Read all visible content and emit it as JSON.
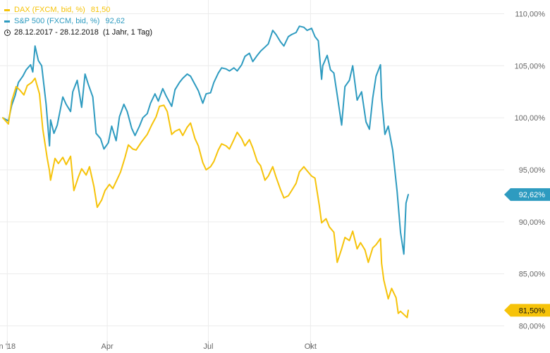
{
  "legend": {
    "series": [
      {
        "name": "DAX (FXCM, bid, %)",
        "value": "81,50",
        "color": "#f6c30a"
      },
      {
        "name": "S&P 500 (FXCM, bid, %)",
        "value": "92,62",
        "color": "#2e9bc0"
      }
    ],
    "range": "28.12.2017 - 28.12.2018",
    "interval": "(1 Jahr, 1 Tag)"
  },
  "colors": {
    "grid": "#ececec",
    "axis_text": "#666666"
  },
  "chart_data": {
    "type": "line",
    "x_range": [
      "2017-12-28",
      "2018-12-28"
    ],
    "ylim": [
      79.5,
      111.5
    ],
    "y_ticks": [
      {
        "value": 80,
        "label": "80,00%"
      },
      {
        "value": 85,
        "label": "85,00%"
      },
      {
        "value": 90,
        "label": "90,00%"
      },
      {
        "value": 95,
        "label": "95,00%"
      },
      {
        "value": 100,
        "label": "100,00%"
      },
      {
        "value": 105,
        "label": "105,00%"
      },
      {
        "value": 110,
        "label": "110,00%"
      }
    ],
    "x_ticks": [
      {
        "date": "2018-01-01",
        "label": "n '18"
      },
      {
        "date": "2018-04-01",
        "label": "Apr"
      },
      {
        "date": "2018-07-01",
        "label": "Jul"
      },
      {
        "date": "2018-10-01",
        "label": "Okt"
      }
    ],
    "series": [
      {
        "name": "S&P 500 (FXCM, bid, %)",
        "color": "#2e9bc0",
        "last_label": "92,62%",
        "points": [
          [
            "2017-12-28",
            100.0
          ],
          [
            "2018-01-02",
            99.7
          ],
          [
            "2018-01-05",
            101.2
          ],
          [
            "2018-01-08",
            102.1
          ],
          [
            "2018-01-11",
            103.4
          ],
          [
            "2018-01-15",
            104.0
          ],
          [
            "2018-01-18",
            104.6
          ],
          [
            "2018-01-22",
            105.1
          ],
          [
            "2018-01-24",
            104.4
          ],
          [
            "2018-01-26",
            106.9
          ],
          [
            "2018-01-29",
            105.5
          ],
          [
            "2018-02-01",
            105.0
          ],
          [
            "2018-02-05",
            101.3
          ],
          [
            "2018-02-08",
            97.3
          ],
          [
            "2018-02-09",
            99.8
          ],
          [
            "2018-02-12",
            98.5
          ],
          [
            "2018-02-15",
            99.3
          ],
          [
            "2018-02-20",
            102.0
          ],
          [
            "2018-02-23",
            101.3
          ],
          [
            "2018-02-27",
            100.6
          ],
          [
            "2018-03-01",
            102.5
          ],
          [
            "2018-03-05",
            103.6
          ],
          [
            "2018-03-09",
            101.0
          ],
          [
            "2018-03-12",
            104.2
          ],
          [
            "2018-03-15",
            103.2
          ],
          [
            "2018-03-19",
            102.0
          ],
          [
            "2018-03-22",
            98.5
          ],
          [
            "2018-03-26",
            98.0
          ],
          [
            "2018-03-29",
            97.0
          ],
          [
            "2018-04-02",
            97.6
          ],
          [
            "2018-04-05",
            99.2
          ],
          [
            "2018-04-09",
            97.8
          ],
          [
            "2018-04-12",
            100.1
          ],
          [
            "2018-04-16",
            101.3
          ],
          [
            "2018-04-19",
            100.6
          ],
          [
            "2018-04-23",
            99.0
          ],
          [
            "2018-04-26",
            98.3
          ],
          [
            "2018-04-30",
            99.2
          ],
          [
            "2018-05-03",
            100.0
          ],
          [
            "2018-05-07",
            100.4
          ],
          [
            "2018-05-10",
            101.4
          ],
          [
            "2018-05-14",
            102.3
          ],
          [
            "2018-05-17",
            101.6
          ],
          [
            "2018-05-21",
            102.8
          ],
          [
            "2018-05-24",
            102.1
          ],
          [
            "2018-05-29",
            101.1
          ],
          [
            "2018-06-01",
            102.7
          ],
          [
            "2018-06-05",
            103.4
          ],
          [
            "2018-06-08",
            103.8
          ],
          [
            "2018-06-12",
            104.2
          ],
          [
            "2018-06-15",
            104.0
          ],
          [
            "2018-06-19",
            103.2
          ],
          [
            "2018-06-22",
            102.6
          ],
          [
            "2018-06-26",
            101.4
          ],
          [
            "2018-06-29",
            102.3
          ],
          [
            "2018-07-03",
            102.4
          ],
          [
            "2018-07-06",
            103.4
          ],
          [
            "2018-07-10",
            104.3
          ],
          [
            "2018-07-13",
            104.8
          ],
          [
            "2018-07-17",
            104.7
          ],
          [
            "2018-07-20",
            104.5
          ],
          [
            "2018-07-24",
            104.8
          ],
          [
            "2018-07-27",
            104.5
          ],
          [
            "2018-07-31",
            105.1
          ],
          [
            "2018-08-03",
            105.9
          ],
          [
            "2018-08-07",
            106.2
          ],
          [
            "2018-08-10",
            105.4
          ],
          [
            "2018-08-14",
            106.0
          ],
          [
            "2018-08-17",
            106.4
          ],
          [
            "2018-08-21",
            106.8
          ],
          [
            "2018-08-24",
            107.1
          ],
          [
            "2018-08-28",
            108.4
          ],
          [
            "2018-08-31",
            108.0
          ],
          [
            "2018-09-04",
            107.3
          ],
          [
            "2018-09-07",
            106.9
          ],
          [
            "2018-09-11",
            107.8
          ],
          [
            "2018-09-14",
            108.0
          ],
          [
            "2018-09-18",
            108.2
          ],
          [
            "2018-09-21",
            108.8
          ],
          [
            "2018-09-25",
            108.7
          ],
          [
            "2018-09-28",
            108.4
          ],
          [
            "2018-10-02",
            108.6
          ],
          [
            "2018-10-05",
            107.8
          ],
          [
            "2018-10-08",
            107.4
          ],
          [
            "2018-10-11",
            103.7
          ],
          [
            "2018-10-12",
            105.0
          ],
          [
            "2018-10-16",
            106.0
          ],
          [
            "2018-10-19",
            104.6
          ],
          [
            "2018-10-22",
            104.3
          ],
          [
            "2018-10-25",
            102.2
          ],
          [
            "2018-10-29",
            99.3
          ],
          [
            "2018-11-01",
            103.0
          ],
          [
            "2018-11-05",
            103.6
          ],
          [
            "2018-11-08",
            105.0
          ],
          [
            "2018-11-12",
            101.7
          ],
          [
            "2018-11-16",
            102.5
          ],
          [
            "2018-11-20",
            99.6
          ],
          [
            "2018-11-23",
            98.9
          ],
          [
            "2018-11-26",
            101.9
          ],
          [
            "2018-11-29",
            104.0
          ],
          [
            "2018-12-03",
            105.1
          ],
          [
            "2018-12-04",
            101.9
          ],
          [
            "2018-12-07",
            98.4
          ],
          [
            "2018-12-10",
            99.2
          ],
          [
            "2018-12-14",
            96.9
          ],
          [
            "2018-12-18",
            92.9
          ],
          [
            "2018-12-21",
            89.0
          ],
          [
            "2018-12-24",
            86.9
          ],
          [
            "2018-12-26",
            91.8
          ],
          [
            "2018-12-28",
            92.62
          ]
        ]
      },
      {
        "name": "DAX (FXCM, bid, %)",
        "color": "#f6c30a",
        "last_label": "81,50%",
        "points": [
          [
            "2017-12-28",
            100.0
          ],
          [
            "2018-01-02",
            99.4
          ],
          [
            "2018-01-05",
            101.6
          ],
          [
            "2018-01-09",
            103.0
          ],
          [
            "2018-01-12",
            102.7
          ],
          [
            "2018-01-16",
            102.2
          ],
          [
            "2018-01-19",
            103.1
          ],
          [
            "2018-01-23",
            103.4
          ],
          [
            "2018-01-26",
            103.8
          ],
          [
            "2018-01-30",
            102.3
          ],
          [
            "2018-02-02",
            98.9
          ],
          [
            "2018-02-06",
            96.1
          ],
          [
            "2018-02-08",
            94.9
          ],
          [
            "2018-02-09",
            94.0
          ],
          [
            "2018-02-13",
            96.1
          ],
          [
            "2018-02-16",
            95.6
          ],
          [
            "2018-02-20",
            96.2
          ],
          [
            "2018-02-23",
            95.5
          ],
          [
            "2018-02-27",
            96.3
          ],
          [
            "2018-03-02",
            93.0
          ],
          [
            "2018-03-06",
            94.3
          ],
          [
            "2018-03-09",
            95.1
          ],
          [
            "2018-03-13",
            94.5
          ],
          [
            "2018-03-16",
            95.3
          ],
          [
            "2018-03-20",
            93.4
          ],
          [
            "2018-03-23",
            91.4
          ],
          [
            "2018-03-27",
            92.1
          ],
          [
            "2018-03-30",
            93.0
          ],
          [
            "2018-04-03",
            93.6
          ],
          [
            "2018-04-06",
            93.2
          ],
          [
            "2018-04-10",
            94.1
          ],
          [
            "2018-04-13",
            94.8
          ],
          [
            "2018-04-17",
            96.2
          ],
          [
            "2018-04-20",
            97.4
          ],
          [
            "2018-04-24",
            97.0
          ],
          [
            "2018-04-27",
            96.9
          ],
          [
            "2018-05-02",
            97.7
          ],
          [
            "2018-05-07",
            98.4
          ],
          [
            "2018-05-11",
            99.3
          ],
          [
            "2018-05-15",
            100.1
          ],
          [
            "2018-05-18",
            101.1
          ],
          [
            "2018-05-22",
            101.2
          ],
          [
            "2018-05-25",
            100.6
          ],
          [
            "2018-05-29",
            98.4
          ],
          [
            "2018-06-01",
            98.7
          ],
          [
            "2018-06-05",
            98.9
          ],
          [
            "2018-06-08",
            98.3
          ],
          [
            "2018-06-12",
            99.1
          ],
          [
            "2018-06-15",
            99.5
          ],
          [
            "2018-06-19",
            98.0
          ],
          [
            "2018-06-22",
            97.3
          ],
          [
            "2018-06-26",
            95.7
          ],
          [
            "2018-06-29",
            95.0
          ],
          [
            "2018-07-03",
            95.3
          ],
          [
            "2018-07-06",
            95.8
          ],
          [
            "2018-07-10",
            96.9
          ],
          [
            "2018-07-13",
            97.5
          ],
          [
            "2018-07-17",
            97.3
          ],
          [
            "2018-07-20",
            97.0
          ],
          [
            "2018-07-24",
            97.9
          ],
          [
            "2018-07-27",
            98.6
          ],
          [
            "2018-07-31",
            98.0
          ],
          [
            "2018-08-03",
            97.3
          ],
          [
            "2018-08-07",
            97.9
          ],
          [
            "2018-08-10",
            97.1
          ],
          [
            "2018-08-14",
            95.8
          ],
          [
            "2018-08-17",
            95.4
          ],
          [
            "2018-08-21",
            94.0
          ],
          [
            "2018-08-24",
            94.4
          ],
          [
            "2018-08-28",
            95.3
          ],
          [
            "2018-08-31",
            94.3
          ],
          [
            "2018-09-04",
            93.1
          ],
          [
            "2018-09-07",
            92.3
          ],
          [
            "2018-09-11",
            92.5
          ],
          [
            "2018-09-14",
            93.0
          ],
          [
            "2018-09-18",
            93.7
          ],
          [
            "2018-09-21",
            94.8
          ],
          [
            "2018-09-25",
            95.3
          ],
          [
            "2018-09-28",
            94.9
          ],
          [
            "2018-10-02",
            94.4
          ],
          [
            "2018-10-05",
            94.2
          ],
          [
            "2018-10-09",
            91.5
          ],
          [
            "2018-10-11",
            89.9
          ],
          [
            "2018-10-15",
            90.3
          ],
          [
            "2018-10-18",
            89.5
          ],
          [
            "2018-10-22",
            89.0
          ],
          [
            "2018-10-25",
            86.1
          ],
          [
            "2018-10-29",
            87.4
          ],
          [
            "2018-11-01",
            88.5
          ],
          [
            "2018-11-05",
            88.2
          ],
          [
            "2018-11-08",
            89.1
          ],
          [
            "2018-11-12",
            87.4
          ],
          [
            "2018-11-15",
            88.0
          ],
          [
            "2018-11-19",
            87.3
          ],
          [
            "2018-11-22",
            86.1
          ],
          [
            "2018-11-26",
            87.5
          ],
          [
            "2018-11-29",
            87.8
          ],
          [
            "2018-12-03",
            88.4
          ],
          [
            "2018-12-04",
            86.0
          ],
          [
            "2018-12-06",
            84.4
          ],
          [
            "2018-12-10",
            82.6
          ],
          [
            "2018-12-13",
            83.6
          ],
          [
            "2018-12-17",
            82.7
          ],
          [
            "2018-12-19",
            81.2
          ],
          [
            "2018-12-21",
            81.4
          ],
          [
            "2018-12-27",
            80.8
          ],
          [
            "2018-12-28",
            81.5
          ]
        ]
      }
    ]
  }
}
